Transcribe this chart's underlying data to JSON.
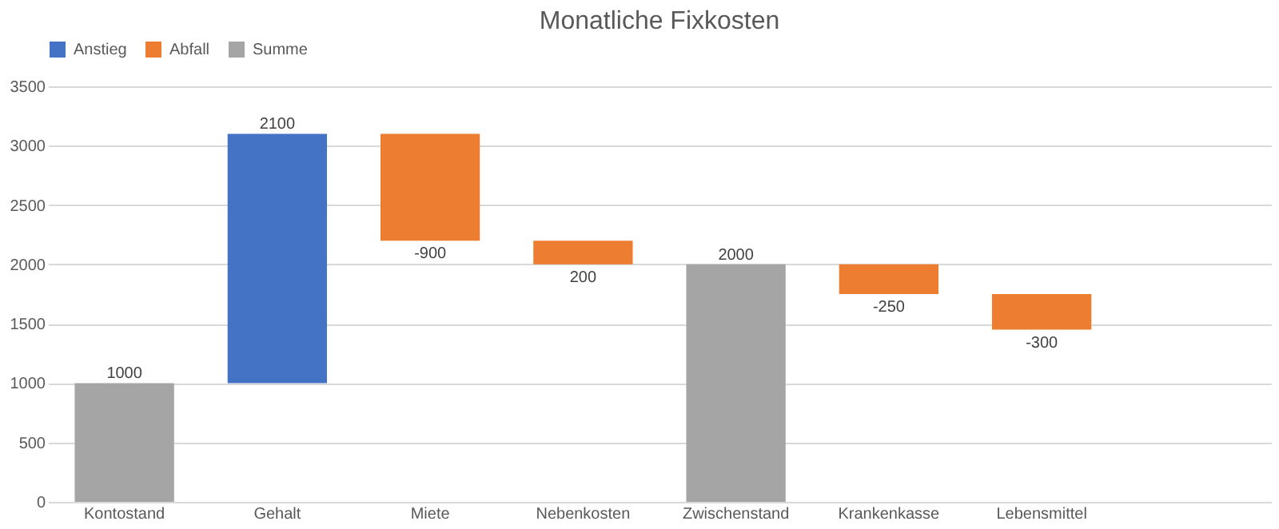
{
  "chart_data": {
    "type": "bar",
    "title": "Monatliche Fixkosten",
    "categories": [
      "Kontostand",
      "Gehalt",
      "Miete",
      "Nebenkosten",
      "Zwischenstand",
      "Krankenkasse",
      "Lebensmittel",
      null
    ],
    "series": [
      {
        "name": "Anstieg",
        "color": "#4472c4",
        "base": [
          null,
          1000,
          null,
          null,
          null,
          null,
          null,
          null
        ],
        "values": [
          null,
          2100,
          null,
          null,
          null,
          null,
          null,
          null
        ],
        "value_labels": [
          null,
          "2100",
          null,
          null,
          null,
          null,
          null,
          null
        ]
      },
      {
        "name": "Abfall",
        "color": "#ed7d31",
        "base": [
          null,
          null,
          3100,
          2200,
          null,
          2000,
          1750,
          null
        ],
        "values": [
          null,
          null,
          -900,
          -200,
          null,
          -250,
          -300,
          null
        ],
        "value_labels": [
          null,
          null,
          "-900",
          "200",
          null,
          "-250",
          "-300",
          null
        ]
      },
      {
        "name": "Summe",
        "color": "#a5a5a5",
        "base": [
          0,
          null,
          null,
          null,
          0,
          null,
          null,
          null
        ],
        "values": [
          1000,
          null,
          null,
          null,
          2000,
          null,
          null,
          null
        ],
        "value_labels": [
          "1000",
          null,
          null,
          null,
          "2000",
          null,
          null,
          null
        ]
      }
    ],
    "ylim": [
      0,
      3500
    ],
    "yticks": [
      0,
      500,
      1000,
      1500,
      2000,
      2500,
      3000,
      3500
    ],
    "grid": "y",
    "legend": "top"
  }
}
